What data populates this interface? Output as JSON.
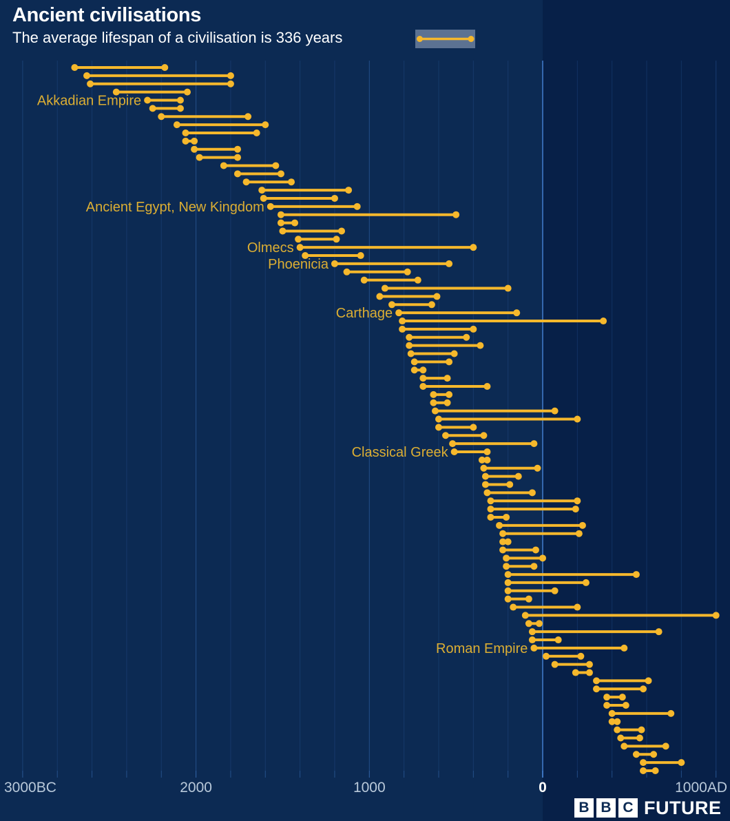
{
  "header": {
    "title": "Ancient civilisations",
    "subtitle": "The average lifespan of a civilisation is 336 years"
  },
  "legend": {
    "meaning": "lifespan bar",
    "average_years": 336
  },
  "branding": {
    "blocks": [
      "B",
      "B",
      "C"
    ],
    "wordmark": "FUTURE"
  },
  "colors": {
    "background_bc": "#0C2A53",
    "background_ad": "#072048",
    "bar": "#F6B82C",
    "label": "#DCAE33",
    "axis_text": "#B9C9DA",
    "axis_zero": "#FFFFFF",
    "gridline": "#3C74C0",
    "legend_swatch": "#5C7292",
    "title_text": "#FFFFFF"
  },
  "axis": {
    "ticks": [
      {
        "year": -3000,
        "label": "3000BC"
      },
      {
        "year": -2000,
        "label": "2000"
      },
      {
        "year": -1000,
        "label": "1000"
      },
      {
        "year": 0,
        "label": "0"
      },
      {
        "year": 1000,
        "label": "1000AD"
      }
    ],
    "minor_step_years": 200
  },
  "chart_data": {
    "type": "dumbbell-timeline",
    "title": "Ancient civilisations",
    "subtitle": "The average lifespan of a civilisation is 336 years",
    "average_lifespan_years": 336,
    "x_axis": {
      "min": -3000,
      "max": 1080,
      "tick_labels": [
        "3000BC",
        "2000",
        "1000",
        "0",
        "1000AD"
      ],
      "note": "negative = BC, positive = AD"
    },
    "grid": "minor lines every 200 years, bright line at year 0",
    "series": [
      {
        "start": -2700,
        "end": -2180
      },
      {
        "start": -2630,
        "end": -1800
      },
      {
        "start": -2610,
        "end": -1800
      },
      {
        "start": -2460,
        "end": -2050
      },
      {
        "start": -2280,
        "end": -2090,
        "label": "Akkadian Empire"
      },
      {
        "start": -2250,
        "end": -2090
      },
      {
        "start": -2200,
        "end": -1700
      },
      {
        "start": -2110,
        "end": -1600
      },
      {
        "start": -2060,
        "end": -1650
      },
      {
        "start": -2060,
        "end": -2010
      },
      {
        "start": -2010,
        "end": -1760
      },
      {
        "start": -1980,
        "end": -1760
      },
      {
        "start": -1840,
        "end": -1540
      },
      {
        "start": -1760,
        "end": -1510
      },
      {
        "start": -1710,
        "end": -1450
      },
      {
        "start": -1620,
        "end": -1120
      },
      {
        "start": -1610,
        "end": -1200
      },
      {
        "start": -1570,
        "end": -1070,
        "label": "Ancient Egypt, New Kingdom"
      },
      {
        "start": -1510,
        "end": -500
      },
      {
        "start": -1510,
        "end": -1430
      },
      {
        "start": -1500,
        "end": -1160
      },
      {
        "start": -1410,
        "end": -1190
      },
      {
        "start": -1400,
        "end": -400,
        "label": "Olmecs"
      },
      {
        "start": -1370,
        "end": -1050
      },
      {
        "start": -1200,
        "end": -540,
        "label": "Phoenicia"
      },
      {
        "start": -1130,
        "end": -780
      },
      {
        "start": -1030,
        "end": -720
      },
      {
        "start": -910,
        "end": -200
      },
      {
        "start": -940,
        "end": -610
      },
      {
        "start": -870,
        "end": -640
      },
      {
        "start": -830,
        "end": -150,
        "label": "Carthage"
      },
      {
        "start": -810,
        "end": 350
      },
      {
        "start": -810,
        "end": -400
      },
      {
        "start": -770,
        "end": -440
      },
      {
        "start": -770,
        "end": -360
      },
      {
        "start": -760,
        "end": -510
      },
      {
        "start": -740,
        "end": -540
      },
      {
        "start": -740,
        "end": -690
      },
      {
        "start": -690,
        "end": -550
      },
      {
        "start": -690,
        "end": -320
      },
      {
        "start": -630,
        "end": -540
      },
      {
        "start": -630,
        "end": -550
      },
      {
        "start": -620,
        "end": 70
      },
      {
        "start": -600,
        "end": 200
      },
      {
        "start": -600,
        "end": -400
      },
      {
        "start": -560,
        "end": -340
      },
      {
        "start": -520,
        "end": -50
      },
      {
        "start": -510,
        "end": -320,
        "label": "Classical Greek"
      },
      {
        "start": -350,
        "end": -320
      },
      {
        "start": -340,
        "end": -30
      },
      {
        "start": -330,
        "end": -140
      },
      {
        "start": -330,
        "end": -190
      },
      {
        "start": -320,
        "end": -60
      },
      {
        "start": -300,
        "end": 200
      },
      {
        "start": -300,
        "end": 190
      },
      {
        "start": -300,
        "end": -210
      },
      {
        "start": -250,
        "end": 230
      },
      {
        "start": -230,
        "end": 210
      },
      {
        "start": -230,
        "end": -200
      },
      {
        "start": -230,
        "end": -40
      },
      {
        "start": -210,
        "end": 0
      },
      {
        "start": -210,
        "end": -50
      },
      {
        "start": -200,
        "end": 540
      },
      {
        "start": -200,
        "end": 250
      },
      {
        "start": -200,
        "end": 70
      },
      {
        "start": -200,
        "end": -80
      },
      {
        "start": -170,
        "end": 200
      },
      {
        "start": -100,
        "end": 1000
      },
      {
        "start": -80,
        "end": -20
      },
      {
        "start": -60,
        "end": 670
      },
      {
        "start": -60,
        "end": 90
      },
      {
        "start": -50,
        "end": 470,
        "label": "Roman Empire"
      },
      {
        "start": 20,
        "end": 220
      },
      {
        "start": 70,
        "end": 270
      },
      {
        "start": 190,
        "end": 270
      },
      {
        "start": 310,
        "end": 610
      },
      {
        "start": 310,
        "end": 580
      },
      {
        "start": 370,
        "end": 460
      },
      {
        "start": 370,
        "end": 480
      },
      {
        "start": 400,
        "end": 740
      },
      {
        "start": 400,
        "end": 430
      },
      {
        "start": 430,
        "end": 570
      },
      {
        "start": 450,
        "end": 560
      },
      {
        "start": 470,
        "end": 710
      },
      {
        "start": 540,
        "end": 640
      },
      {
        "start": 580,
        "end": 800
      },
      {
        "start": 580,
        "end": 650
      }
    ]
  }
}
